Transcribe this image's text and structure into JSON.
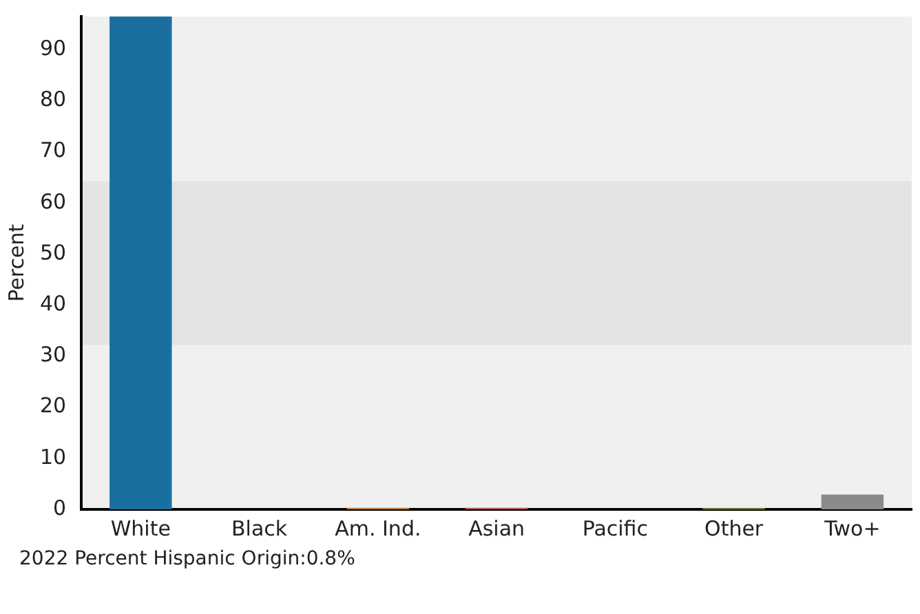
{
  "chart_data": {
    "type": "bar",
    "ylabel": "Percent",
    "categories": [
      "White",
      "Black",
      "Am. Ind.",
      "Asian",
      "Pacific",
      "Other",
      "Two+"
    ],
    "values": [
      96.5,
      0,
      0.3,
      0.3,
      0,
      0.2,
      2.9
    ],
    "colors": [
      "#1a6fa0",
      "#7f7f7f",
      "#c07a3a",
      "#b0584a",
      "#7f7f7f",
      "#a8a040",
      "#8a8a8a"
    ],
    "ylim": [
      0,
      96.5
    ],
    "yticks": [
      0,
      10,
      20,
      30,
      40,
      50,
      60,
      70,
      80,
      90
    ],
    "grid": false,
    "legend": false,
    "bands": [
      {
        "axis": "y",
        "from": 32.2,
        "to": 64.3,
        "color": "#e4e4e4"
      }
    ],
    "annotations": [
      "2022 Percent Hispanic Origin:0.8%"
    ]
  }
}
